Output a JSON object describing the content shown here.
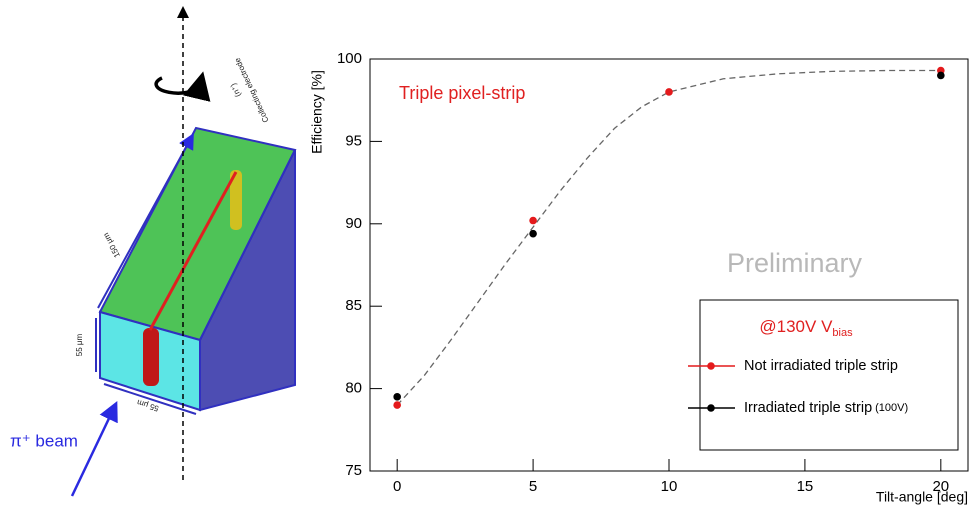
{
  "chart_data": {
    "type": "scatter",
    "title": "Triple pixel-strip",
    "watermark": "Preliminary",
    "x_label": "Tilt-angle [deg]",
    "y_label": "Efficiency [%]",
    "xlim": [
      -1,
      21
    ],
    "xticks": [
      0,
      5,
      10,
      15,
      20
    ],
    "ylim": [
      75,
      100
    ],
    "yticks": [
      75,
      80,
      85,
      90,
      95,
      100
    ],
    "legend_title": "@130V V",
    "legend_title_sub": "bias",
    "legend": "lower right",
    "series": [
      {
        "name": "Not irradiated triple strip",
        "color": "#e41a1c",
        "x": [
          0,
          5,
          10,
          20
        ],
        "values": [
          79.0,
          90.2,
          98.0,
          99.3
        ]
      },
      {
        "name": "Irradiated triple strip",
        "note": "(100V)",
        "color": "#000000",
        "x": [
          0,
          5,
          20
        ],
        "values": [
          79.5,
          89.4,
          99.0
        ]
      }
    ],
    "fit": {
      "color": "#666666",
      "x": [
        0,
        1,
        2,
        3,
        4,
        5,
        6,
        7,
        8,
        9,
        10,
        12,
        14,
        16,
        18,
        20
      ],
      "values": [
        79.0,
        80.8,
        83.0,
        85.3,
        87.6,
        89.8,
        92.0,
        94.0,
        95.8,
        97.1,
        98.0,
        98.8,
        99.1,
        99.25,
        99.3,
        99.3
      ]
    }
  },
  "diagram": {
    "beam": "π⁺ beam",
    "labels": [
      "150 μm",
      "55 μm",
      "55 μm",
      "Collecting electrode",
      "(n⁺)"
    ]
  }
}
